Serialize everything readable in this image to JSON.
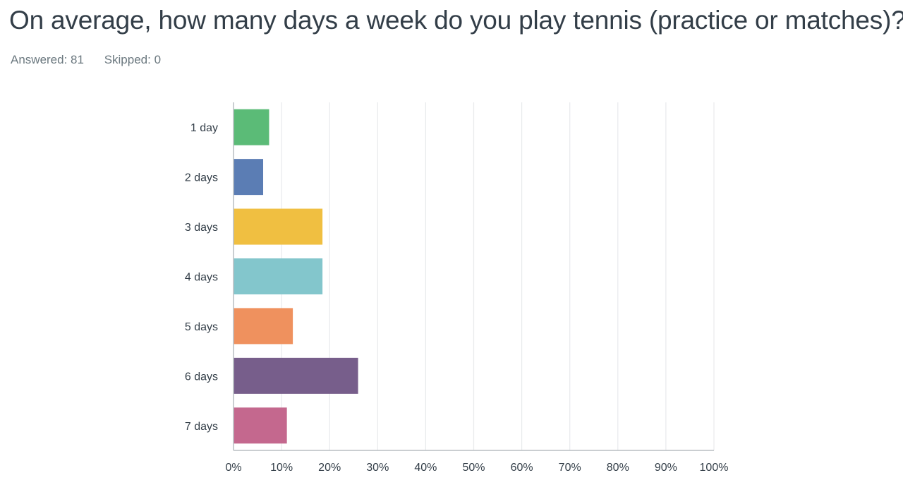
{
  "question": {
    "title": "On average, how many days a week do you play tennis (practice or matches)?",
    "answered_label": "Answered: 81",
    "skipped_label": "Skipped: 0"
  },
  "chart_data": {
    "type": "bar",
    "orientation": "horizontal",
    "categories": [
      "1 day",
      "2 days",
      "3 days",
      "4 days",
      "5 days",
      "6 days",
      "7 days"
    ],
    "values": [
      7.41,
      6.17,
      18.52,
      18.52,
      12.35,
      25.93,
      11.11
    ],
    "colors": [
      "#5bbb77",
      "#5b7db4",
      "#f0bf41",
      "#83c6cc",
      "#ef915e",
      "#775e8b",
      "#c4688e"
    ],
    "xlim": [
      0,
      100
    ],
    "x_ticks": [
      "0%",
      "10%",
      "20%",
      "30%",
      "40%",
      "50%",
      "60%",
      "70%",
      "80%",
      "90%",
      "100%"
    ],
    "grid": true,
    "grid_color": "#e8eaec",
    "axis_color": "#b8bec2"
  }
}
